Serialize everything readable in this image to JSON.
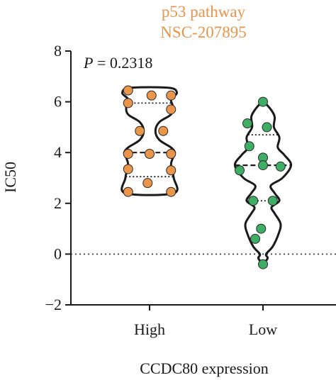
{
  "chart_data": {
    "type": "violin",
    "title": "p53 pathway",
    "subtitle": "NSC-207895",
    "title_color": "#e9954a",
    "annotation": {
      "label": "P",
      "text": " = 0.2318"
    },
    "xlabel": "CCDC80 expression",
    "ylabel": "IC50",
    "ylim": [
      -2,
      8
    ],
    "yticks": [
      -2,
      0,
      2,
      4,
      6,
      8
    ],
    "reference_line": {
      "y": 0,
      "style": "dotted"
    },
    "categories": [
      "High",
      "Low"
    ],
    "series": [
      {
        "category": "High",
        "color": "#e9954a",
        "median": 4.0,
        "q1": 3.05,
        "q3": 5.95,
        "points": [
          {
            "x": -0.55,
            "y": 6.45
          },
          {
            "x": 0.05,
            "y": 6.25
          },
          {
            "x": 0.55,
            "y": 6.25
          },
          {
            "x": -0.55,
            "y": 5.95
          },
          {
            "x": 0.55,
            "y": 5.7
          },
          {
            "x": -0.25,
            "y": 4.85
          },
          {
            "x": 0.35,
            "y": 4.85
          },
          {
            "x": -0.55,
            "y": 3.95
          },
          {
            "x": 0.0,
            "y": 3.95
          },
          {
            "x": 0.55,
            "y": 3.95
          },
          {
            "x": -0.55,
            "y": 3.35
          },
          {
            "x": 0.55,
            "y": 3.3
          },
          {
            "x": -0.55,
            "y": 2.45
          },
          {
            "x": -0.05,
            "y": 2.8
          },
          {
            "x": 0.55,
            "y": 2.45
          }
        ],
        "outline": [
          [
            2.4,
            0.62
          ],
          [
            3.0,
            0.62
          ],
          [
            3.5,
            0.55
          ],
          [
            3.8,
            0.6
          ],
          [
            4.0,
            0.65
          ],
          [
            4.2,
            0.55
          ],
          [
            4.5,
            0.25
          ],
          [
            4.85,
            0.15
          ],
          [
            5.2,
            0.25
          ],
          [
            5.5,
            0.55
          ],
          [
            5.8,
            0.6
          ],
          [
            6.1,
            0.55
          ],
          [
            6.35,
            0.7
          ],
          [
            6.55,
            0.5
          ]
        ]
      },
      {
        "category": "Low",
        "color": "#3dae64",
        "median": 3.5,
        "q1": 2.1,
        "q3": 4.7,
        "points": [
          {
            "x": 0.0,
            "y": 6.0
          },
          {
            "x": -0.4,
            "y": 5.15
          },
          {
            "x": 0.1,
            "y": 5.0
          },
          {
            "x": -0.35,
            "y": 4.25
          },
          {
            "x": 0.0,
            "y": 3.8
          },
          {
            "x": -0.6,
            "y": 3.3
          },
          {
            "x": 0.0,
            "y": 3.5
          },
          {
            "x": 0.45,
            "y": 3.45
          },
          {
            "x": -0.25,
            "y": 2.1
          },
          {
            "x": 0.25,
            "y": 2.1
          },
          {
            "x": -0.05,
            "y": 1.0
          },
          {
            "x": -0.2,
            "y": 0.6
          },
          {
            "x": 0.0,
            "y": -0.4
          }
        ],
        "outline": [
          [
            -0.3,
            0.05
          ],
          [
            -0.15,
            0.12
          ],
          [
            0.0,
            0.08
          ],
          [
            0.3,
            0.25
          ],
          [
            0.8,
            0.4
          ],
          [
            1.2,
            0.45
          ],
          [
            1.6,
            0.3
          ],
          [
            1.85,
            0.22
          ],
          [
            2.1,
            0.42
          ],
          [
            2.4,
            0.3
          ],
          [
            2.7,
            0.2
          ],
          [
            3.0,
            0.5
          ],
          [
            3.5,
            0.72
          ],
          [
            3.9,
            0.55
          ],
          [
            4.2,
            0.38
          ],
          [
            4.6,
            0.42
          ],
          [
            5.0,
            0.28
          ],
          [
            5.4,
            0.3
          ],
          [
            5.7,
            0.2
          ],
          [
            6.0,
            0.02
          ]
        ]
      }
    ]
  }
}
